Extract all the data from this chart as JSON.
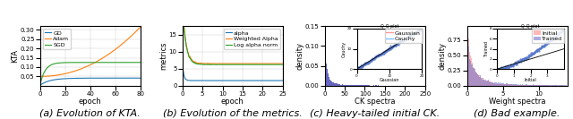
{
  "fig_width": 6.4,
  "fig_height": 1.33,
  "dpi": 100,
  "subplot_captions": [
    "(a) Evolution of KTA.",
    "(b) Evolution of the metrics.",
    "(c) Heavy-tailed initial CK.",
    "(d) Bad example."
  ],
  "plot1": {
    "xlabel": "epoch",
    "ylabel": "KTA",
    "xlim": [
      0,
      80
    ],
    "ylim": [
      0.0,
      0.32
    ],
    "yticks": [
      0.05,
      0.1,
      0.15,
      0.2,
      0.25,
      0.3
    ],
    "xticks": [
      0,
      20,
      40,
      60,
      80
    ],
    "colors": {
      "GD": "#1f77b4",
      "Adam": "#ff7f0e",
      "SGD": "#2ca02c"
    }
  },
  "plot2": {
    "xlabel": "epoch",
    "ylabel": "metrics",
    "xlim": [
      0,
      25
    ],
    "ylim": [
      0,
      17.5
    ],
    "xticks": [
      0,
      5,
      10,
      15,
      20,
      25
    ],
    "colors": {
      "alpha": "#1f77b4",
      "Weighted Alpha": "#ff7f0e",
      "Log alpha norm": "#2ca02c"
    }
  },
  "plot3": {
    "xlabel": "CK spectra",
    "ylabel": "density",
    "xlim": [
      0,
      250
    ],
    "bar_color": "#5555bb",
    "inset_legend": [
      "Gaussian",
      "Cauchy"
    ],
    "inset_colors": [
      "#ff9999",
      "#7fbfff"
    ]
  },
  "plot4": {
    "xlabel": "Weight spectra",
    "ylabel": "density",
    "xlim": [
      0,
      14
    ],
    "colors": [
      "#ff9999",
      "#7777cc"
    ],
    "labels": [
      "Initial",
      "Trained"
    ],
    "inset_ylabel": "Trained"
  },
  "caption_fontsize": 8,
  "tick_fontsize": 5,
  "label_fontsize": 6,
  "legend_fontsize": 4.5
}
